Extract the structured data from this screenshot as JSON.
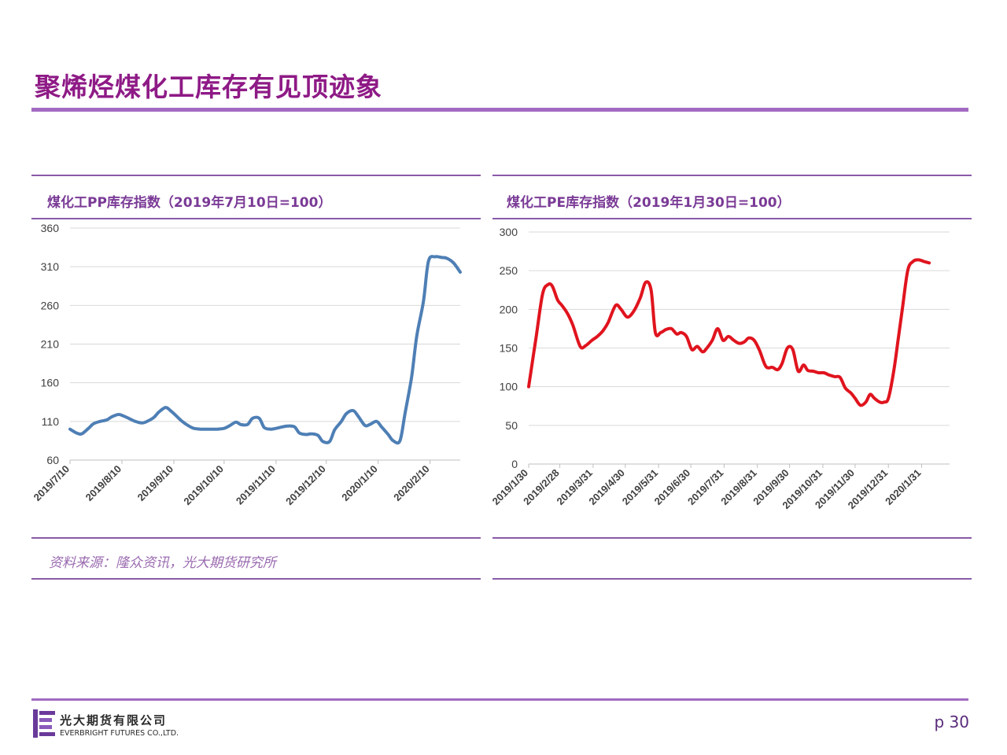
{
  "page": {
    "title": "聚烯烃煤化工库存有见顶迹象",
    "source": "资料来源：隆众资讯，光大期货研究所",
    "page_number": "p 30",
    "company_cn": "光大期货有限公司",
    "company_en": "EVERBRIGHT FUTURES CO.,LTD.",
    "accent_color": "#8e1a86",
    "rule_color": "#a26ac2"
  },
  "chart_data": [
    {
      "type": "line",
      "title": "煤化工PP库存指数（2019年7月10日=100）",
      "color": "#4e7fb5",
      "ylim": [
        60,
        360
      ],
      "yticks": [
        60,
        110,
        160,
        210,
        260,
        310,
        360
      ],
      "x_start": "2019-07-10",
      "x_end": "2020-02-28",
      "xtick_dates": [
        "2019-07-10",
        "2019-08-10",
        "2019-09-10",
        "2019-10-10",
        "2019-11-10",
        "2019-12-10",
        "2020-01-10",
        "2020-02-10"
      ],
      "xtick_labels": [
        "2019/7/10",
        "2019/8/10",
        "2019/9/10",
        "2019/10/10",
        "2019/11/10",
        "2019/12/10",
        "2020/1/10",
        "2020/2/10"
      ],
      "grid": true,
      "series": [
        {
          "x": [
            "2019-07-10",
            "2019-07-14",
            "2019-07-17",
            "2019-07-21",
            "2019-07-24",
            "2019-07-28",
            "2019-08-01",
            "2019-08-04",
            "2019-08-08",
            "2019-08-11",
            "2019-08-15",
            "2019-08-18",
            "2019-08-22",
            "2019-08-25",
            "2019-08-29",
            "2019-09-01",
            "2019-09-05",
            "2019-09-08",
            "2019-09-12",
            "2019-09-15",
            "2019-09-19",
            "2019-09-22",
            "2019-09-26",
            "2019-09-29",
            "2019-10-03",
            "2019-10-06",
            "2019-10-10",
            "2019-10-13",
            "2019-10-17",
            "2019-10-20",
            "2019-10-24",
            "2019-10-27",
            "2019-10-31",
            "2019-11-03",
            "2019-11-07",
            "2019-11-10",
            "2019-11-14",
            "2019-11-17",
            "2019-11-21",
            "2019-11-24",
            "2019-11-28",
            "2019-12-01",
            "2019-12-05",
            "2019-12-08",
            "2019-12-12",
            "2019-12-15",
            "2019-12-19",
            "2019-12-22",
            "2019-12-26",
            "2019-12-29",
            "2020-01-02",
            "2020-01-05",
            "2020-01-09",
            "2020-01-12",
            "2020-01-16",
            "2020-01-19",
            "2020-01-23",
            "2020-01-26",
            "2020-01-30",
            "2020-02-02",
            "2020-02-06",
            "2020-02-09",
            "2020-02-13",
            "2020-02-17",
            "2020-02-20",
            "2020-02-24",
            "2020-02-28"
          ],
          "values": [
            100,
            95,
            94,
            101,
            107,
            110,
            112,
            116,
            119,
            117,
            113,
            110,
            108,
            110,
            115,
            122,
            128,
            124,
            116,
            110,
            104,
            101,
            100,
            100,
            100,
            100,
            101,
            104,
            109,
            106,
            106,
            114,
            114,
            102,
            100,
            101,
            103,
            104,
            103,
            95,
            93,
            94,
            92,
            84,
            84,
            99,
            110,
            120,
            124,
            117,
            105,
            106,
            110,
            103,
            93,
            85,
            85,
            120,
            168,
            220,
            265,
            317,
            323,
            322,
            321,
            315,
            303
          ]
        }
      ]
    },
    {
      "type": "line",
      "title": "煤化工PE库存指数（2019年1月30日=100）",
      "color": "#e0141e",
      "ylim": [
        0,
        300
      ],
      "yticks": [
        0,
        50,
        100,
        150,
        200,
        250,
        300
      ],
      "x_start": "2019-01-30",
      "x_end": "2020-02-26",
      "xtick_dates": [
        "2019-01-30",
        "2019-02-28",
        "2019-03-31",
        "2019-04-30",
        "2019-05-31",
        "2019-06-30",
        "2019-07-31",
        "2019-08-31",
        "2019-09-30",
        "2019-10-31",
        "2019-11-30",
        "2019-12-31",
        "2020-01-31"
      ],
      "xtick_labels": [
        "2019/1/30",
        "2019/2/28",
        "2019/3/31",
        "2019/4/30",
        "2019/5/31",
        "2019/6/30",
        "2019/7/31",
        "2019/8/31",
        "2019/9/30",
        "2019/10/31",
        "2019/11/30",
        "2019/12/31",
        "2020/1/31"
      ],
      "grid": true,
      "series": [
        {
          "x": [
            "2019-01-30",
            "2019-02-06",
            "2019-02-12",
            "2019-02-17",
            "2019-02-21",
            "2019-02-26",
            "2019-03-02",
            "2019-03-07",
            "2019-03-12",
            "2019-03-19",
            "2019-03-24",
            "2019-03-30",
            "2019-04-04",
            "2019-04-09",
            "2019-04-14",
            "2019-04-21",
            "2019-04-26",
            "2019-05-02",
            "2019-05-08",
            "2019-05-14",
            "2019-05-19",
            "2019-05-24",
            "2019-05-28",
            "2019-06-02",
            "2019-06-07",
            "2019-06-12",
            "2019-06-17",
            "2019-06-21",
            "2019-06-26",
            "2019-07-01",
            "2019-07-06",
            "2019-07-11",
            "2019-07-15",
            "2019-07-20",
            "2019-07-25",
            "2019-07-30",
            "2019-08-04",
            "2019-08-09",
            "2019-08-14",
            "2019-08-19",
            "2019-08-23",
            "2019-08-28",
            "2019-09-02",
            "2019-09-08",
            "2019-09-14",
            "2019-09-19",
            "2019-09-23",
            "2019-09-28",
            "2019-10-03",
            "2019-10-08",
            "2019-10-13",
            "2019-10-17",
            "2019-10-22",
            "2019-10-27",
            "2019-11-01",
            "2019-11-06",
            "2019-11-11",
            "2019-11-16",
            "2019-11-21",
            "2019-11-26",
            "2019-11-30",
            "2019-12-05",
            "2019-12-10",
            "2019-12-14",
            "2019-12-18",
            "2019-12-23",
            "2019-12-27",
            "2019-12-31",
            "2020-01-05",
            "2020-01-09",
            "2020-01-13",
            "2020-01-18",
            "2020-01-23",
            "2020-01-28",
            "2020-02-02",
            "2020-02-07",
            "2020-02-12",
            "2020-02-17",
            "2020-02-21",
            "2020-02-26"
          ],
          "values": [
            100,
            165,
            220,
            232,
            230,
            212,
            205,
            195,
            180,
            152,
            153,
            160,
            165,
            172,
            183,
            205,
            200,
            190,
            198,
            215,
            235,
            225,
            170,
            170,
            174,
            175,
            168,
            170,
            165,
            148,
            152,
            145,
            150,
            160,
            175,
            160,
            165,
            160,
            156,
            158,
            163,
            160,
            147,
            126,
            125,
            122,
            130,
            150,
            148,
            120,
            128,
            121,
            120,
            118,
            118,
            115,
            113,
            112,
            98,
            92,
            85,
            76,
            80,
            90,
            85,
            80,
            80,
            85,
            120,
            160,
            200,
            250,
            262,
            264,
            262,
            260,
            null,
            null,
            null,
            null
          ]
        }
      ]
    }
  ]
}
